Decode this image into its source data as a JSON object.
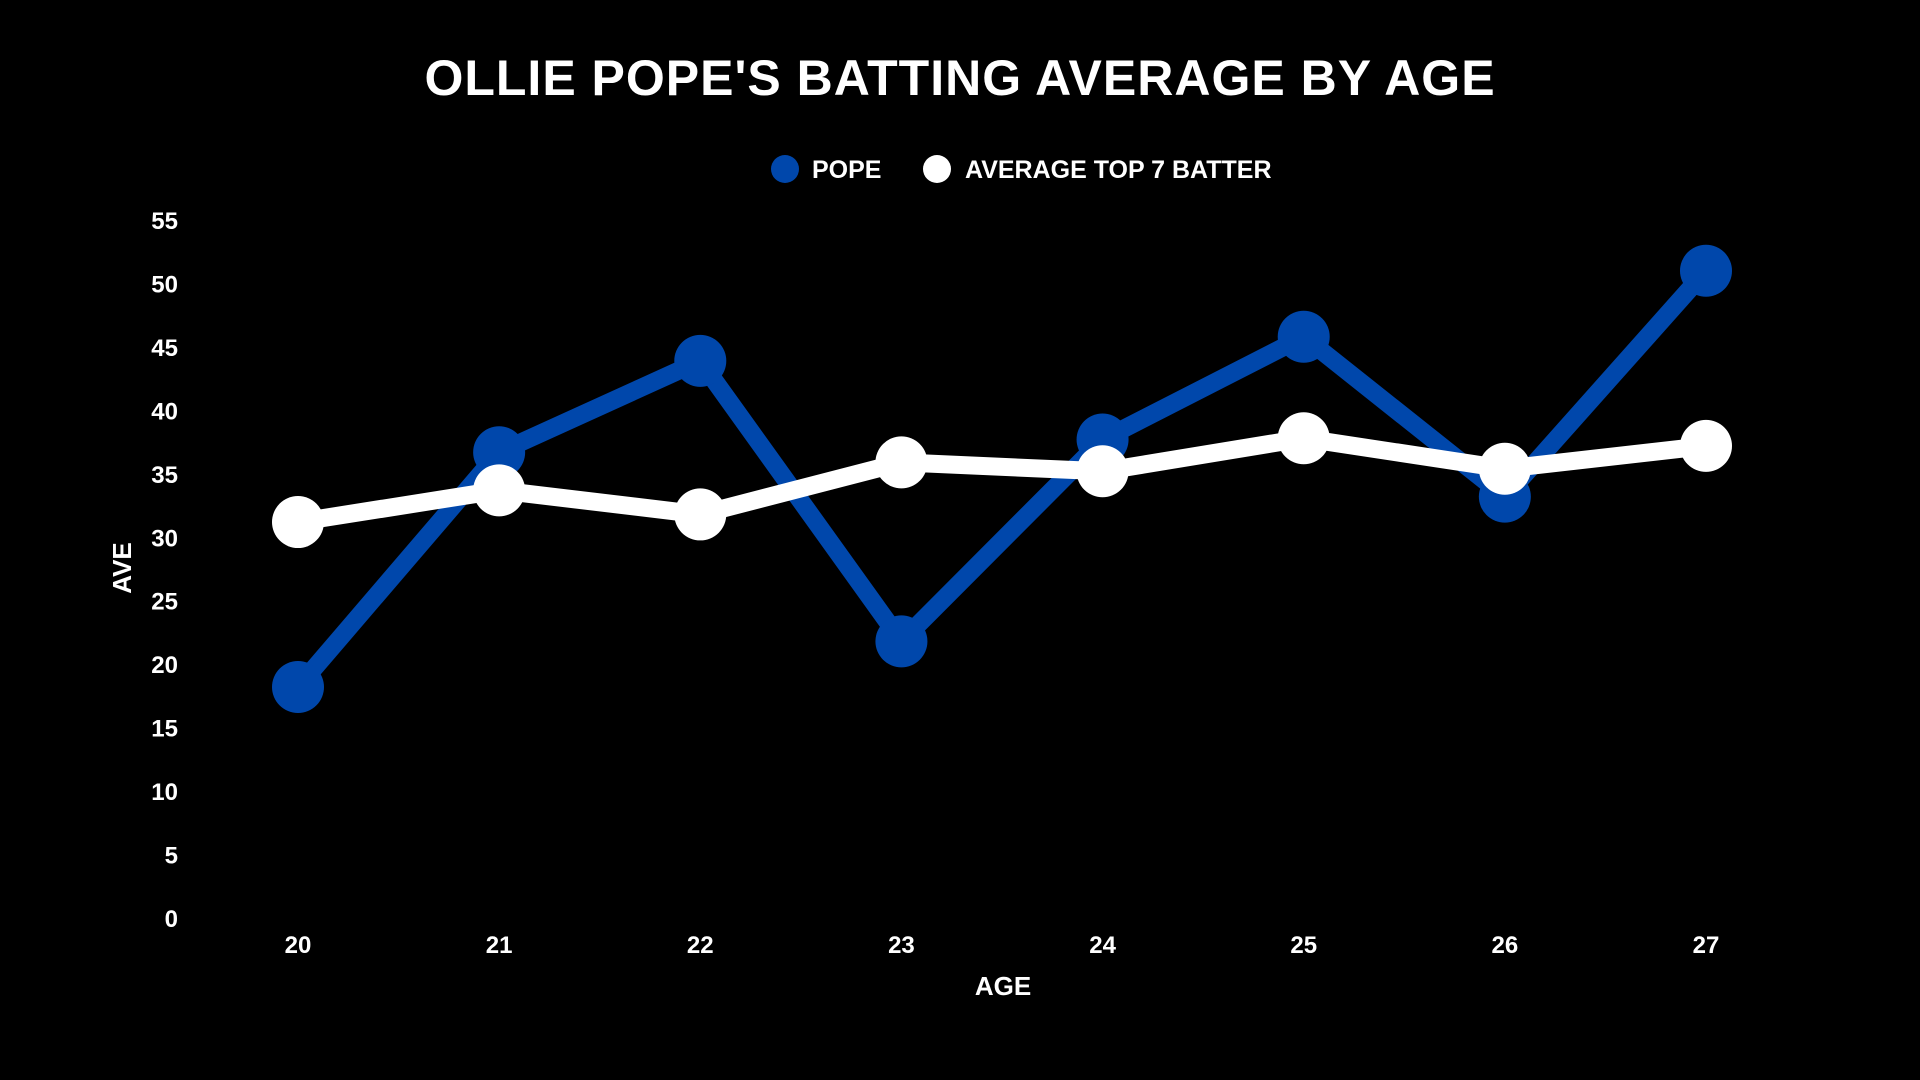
{
  "chart_data": {
    "type": "line",
    "title": "OLLIE POPE'S BATTING AVERAGE BY AGE",
    "xlabel": "AGE",
    "ylabel": "AVE",
    "x": [
      20,
      21,
      22,
      23,
      24,
      25,
      26,
      27
    ],
    "ylim": [
      0,
      55
    ],
    "yticks": [
      0,
      5,
      10,
      15,
      20,
      25,
      30,
      35,
      40,
      45,
      50,
      55
    ],
    "grid": false,
    "legend_position": "top-center",
    "series": [
      {
        "name": "POPE",
        "color": "#0047AB",
        "values": [
          18.2,
          36.7,
          43.9,
          21.8,
          37.7,
          45.8,
          33.2,
          51.0
        ]
      },
      {
        "name": "AVERAGE TOP 7 BATTER",
        "color": "#FFFFFF",
        "values": [
          31.2,
          33.7,
          31.8,
          35.9,
          35.2,
          37.8,
          35.4,
          37.2
        ]
      }
    ]
  },
  "colors": {
    "background": "#000000",
    "text": "#FFFFFF"
  }
}
